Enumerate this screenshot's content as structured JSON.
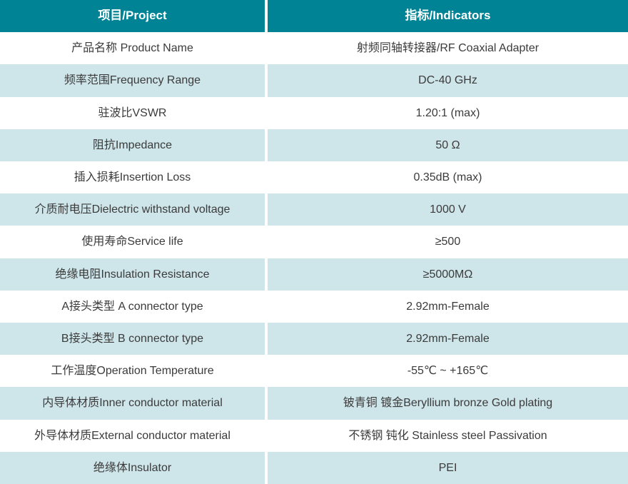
{
  "table": {
    "header": {
      "project": "项目/Project",
      "indicators": "指标/Indicators"
    },
    "rows": [
      {
        "project": "产品名称 Product Name",
        "indicator": "射频同轴转接器/RF Coaxial Adapter"
      },
      {
        "project": "频率范围Frequency Range",
        "indicator": "DC-40 GHz"
      },
      {
        "project": "驻波比VSWR",
        "indicator": "1.20:1 (max)"
      },
      {
        "project": "阻抗Impedance",
        "indicator": "50 Ω"
      },
      {
        "project": "插入损耗Insertion Loss",
        "indicator": "0.35dB (max)"
      },
      {
        "project": "介质耐电压Dielectric withstand voltage",
        "indicator": "1000 V"
      },
      {
        "project": "使用寿命Service life",
        "indicator": "≥500"
      },
      {
        "project": "绝缘电阻Insulation Resistance",
        "indicator": "≥5000MΩ"
      },
      {
        "project": "A接头类型 A connector type",
        "indicator": "2.92mm-Female"
      },
      {
        "project": "B接头类型 B connector type",
        "indicator": "2.92mm-Female"
      },
      {
        "project": "工作温度Operation Temperature",
        "indicator": "-55℃ ~ +165℃"
      },
      {
        "project": "内导体材质Inner conductor material",
        "indicator": "铍青铜 镀金Beryllium bronze Gold plating"
      },
      {
        "project": "外导体材质External conductor material",
        "indicator": "不锈钢 钝化 Stainless steel Passivation"
      },
      {
        "project": "绝缘体Insulator",
        "indicator": "PEI"
      }
    ],
    "colors": {
      "header_bg": "#008394",
      "header_text": "#ffffff",
      "alt_row_bg": "#cee5ea",
      "row_bg": "#ffffff",
      "body_text": "#3b3b3b",
      "divider": "#ffffff"
    }
  }
}
